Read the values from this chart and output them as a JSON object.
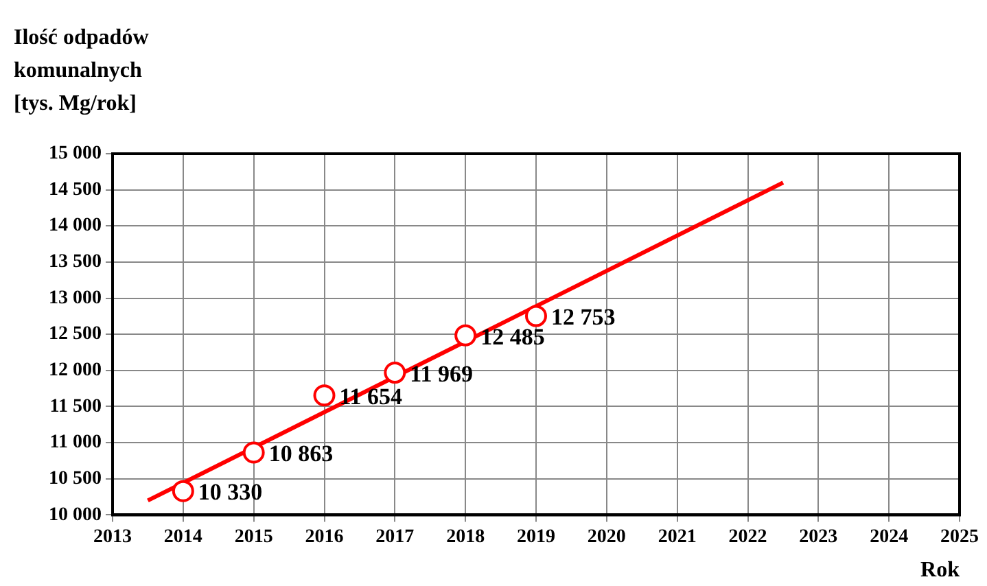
{
  "chart_data": {
    "type": "scatter",
    "ylabel": "Ilość odpadów\nkomunalnych\n[tys. Mg/rok]",
    "xlabel": "Rok",
    "x": [
      2014,
      2015,
      2016,
      2017,
      2018,
      2019
    ],
    "series": [
      {
        "color": "#ff0000",
        "marker": "circle",
        "values": [
          10330,
          10863,
          11654,
          11969,
          12485,
          12753
        ],
        "value_labels": [
          "10 330",
          "10 863",
          "11 654",
          "11 969",
          "12 485",
          "12 753"
        ]
      },
      {
        "type": "line",
        "color": "#ff0000",
        "x": [
          2013.5,
          2022.5
        ],
        "values": [
          10200,
          14600
        ]
      }
    ],
    "xlim": [
      2013,
      2025
    ],
    "xticks": [
      2013,
      2014,
      2015,
      2016,
      2017,
      2018,
      2019,
      2020,
      2021,
      2022,
      2023,
      2024,
      2025
    ],
    "ylim": [
      10000,
      15000
    ],
    "yticks": [
      {
        "value": 10000,
        "label": "10 000"
      },
      {
        "value": 10500,
        "label": "10 500"
      },
      {
        "value": 11000,
        "label": "11 000"
      },
      {
        "value": 11500,
        "label": "11 500"
      },
      {
        "value": 12000,
        "label": "12 000"
      },
      {
        "value": 12500,
        "label": "12 500"
      },
      {
        "value": 13000,
        "label": "13 000"
      },
      {
        "value": 13500,
        "label": "13 500"
      },
      {
        "value": 14000,
        "label": "14 000"
      },
      {
        "value": 14500,
        "label": "14 500"
      },
      {
        "value": 15000,
        "label": "15 000"
      }
    ],
    "grid": true,
    "legend": false
  }
}
